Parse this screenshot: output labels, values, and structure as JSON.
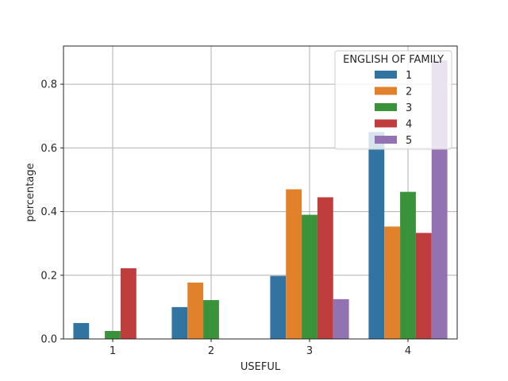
{
  "chart_data": {
    "type": "bar",
    "title": "",
    "xlabel": "USEFUL",
    "ylabel": "percentage",
    "categories": [
      "1",
      "2",
      "3",
      "4"
    ],
    "ylim": [
      0,
      0.92
    ],
    "yticks": [
      0.0,
      0.2,
      0.4,
      0.6,
      0.8
    ],
    "ytick_labels": [
      "0.0",
      "0.2",
      "0.4",
      "0.6",
      "0.8"
    ],
    "grid": true,
    "legend": {
      "title": "ENGLISH OF FAMILY",
      "placement": "top-right"
    },
    "series": [
      {
        "name": "1",
        "color": "#3274a1",
        "values": [
          0.05,
          0.1,
          0.198,
          0.65
        ]
      },
      {
        "name": "2",
        "color": "#e1812c",
        "values": [
          0.0,
          0.177,
          0.47,
          0.353
        ]
      },
      {
        "name": "3",
        "color": "#3a923a",
        "values": [
          0.025,
          0.122,
          0.39,
          0.462
        ]
      },
      {
        "name": "4",
        "color": "#c03d3e",
        "values": [
          0.222,
          0.0,
          0.445,
          0.333
        ]
      },
      {
        "name": "5",
        "color": "#9372b2",
        "values": [
          0.0,
          0.0,
          0.125,
          0.875
        ]
      }
    ]
  }
}
